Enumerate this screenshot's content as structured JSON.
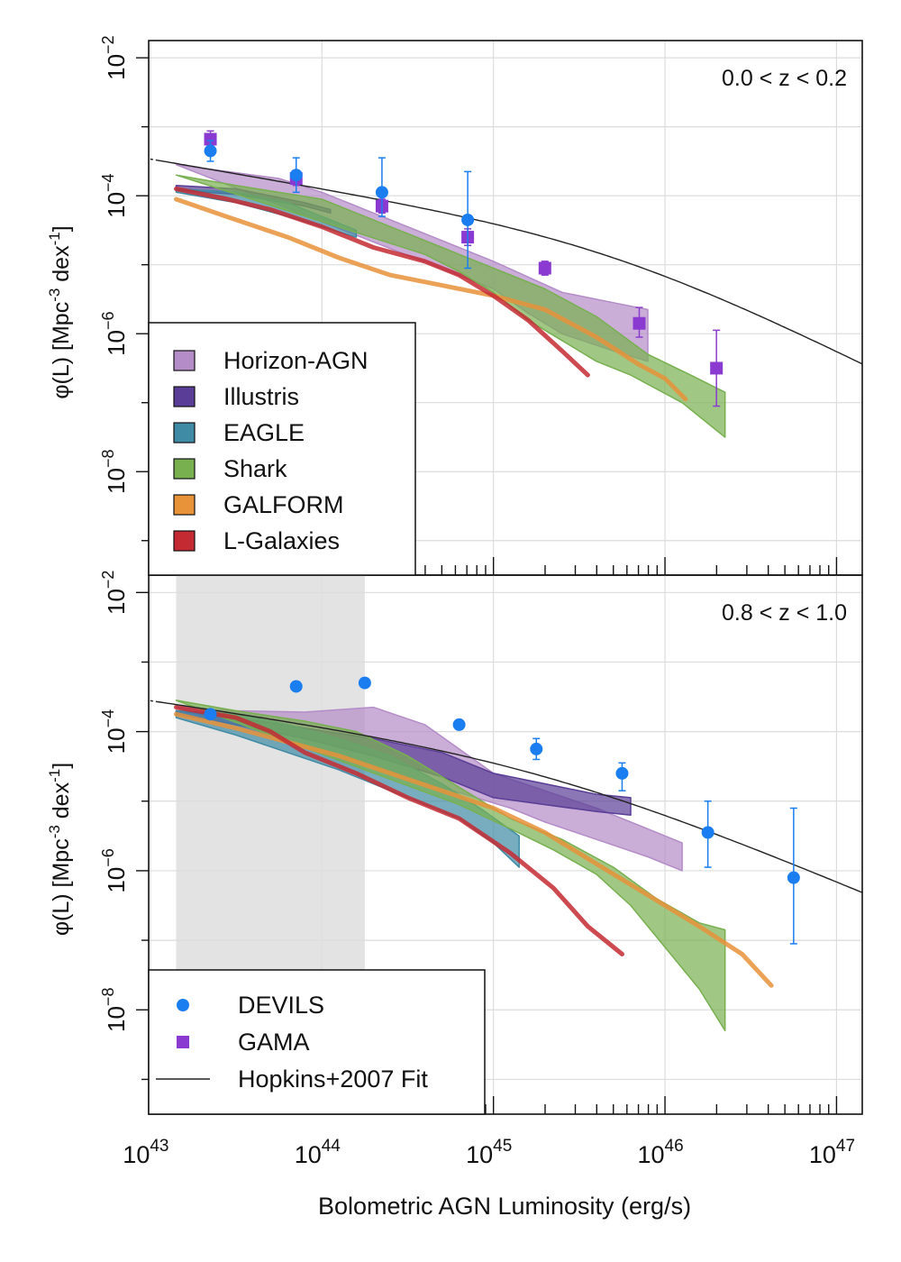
{
  "chart_data": {
    "type": "line",
    "xlabel": "Bolometric AGN Luminosity (erg/s)",
    "ylabel_main": "φ(L)  [Mpc",
    "ylabel_sup1": "-3",
    "ylabel_mid": " dex",
    "ylabel_sup2": "-1",
    "ylabel_end": "]",
    "x_scale": "log10",
    "y_scale": "log10",
    "xlim_log": [
      42.99,
      47.15
    ],
    "ylim_log": [
      -9.5,
      -1.75
    ],
    "x_tick_labels": [
      {
        "base": "10",
        "exp": "43",
        "log": 43
      },
      {
        "base": "10",
        "exp": "44",
        "log": 44
      },
      {
        "base": "10",
        "exp": "45",
        "log": 45
      },
      {
        "base": "10",
        "exp": "46",
        "log": 46
      },
      {
        "base": "10",
        "exp": "47",
        "log": 47
      }
    ],
    "y_tick_labels": [
      {
        "base": "10",
        "exp": "−2",
        "log": -2
      },
      {
        "base": "10",
        "exp": "−4",
        "log": -4
      },
      {
        "base": "10",
        "exp": "−6",
        "log": -6
      },
      {
        "base": "10",
        "exp": "−8",
        "log": -8
      }
    ],
    "colors": {
      "Horizon-AGN": "#b48cc8",
      "Illustris": "#5a3d96",
      "EAGLE": "#3f8aa4",
      "Shark": "#78b050",
      "GALFORM": "#e8923a",
      "L-Galaxies": "#c42a32",
      "DEVILS": "#1a7ef0",
      "GAMA": "#8a3ad0",
      "Hopkins": "#222222"
    },
    "legend_sims": [
      {
        "label": "Horizon-AGN",
        "color": "#b48cc8"
      },
      {
        "label": "Illustris",
        "color": "#5a3d96"
      },
      {
        "label": "EAGLE",
        "color": "#3f8aa4"
      },
      {
        "label": "Shark",
        "color": "#78b050"
      },
      {
        "label": "GALFORM",
        "color": "#e8923a"
      },
      {
        "label": "L-Galaxies",
        "color": "#c42a32"
      }
    ],
    "legend_obs": [
      {
        "label": "DEVILS",
        "marker": "circle",
        "color": "#1a7ef0"
      },
      {
        "label": "GAMA",
        "marker": "square",
        "color": "#8a3ad0"
      },
      {
        "label": "Hopkins+2007 Fit",
        "marker": "line",
        "color": "#222222"
      }
    ],
    "hopkins_fit": {
      "label": "Hopkins+2007 Fit",
      "note": "double power law, log phi vs log L",
      "top": {
        "logphi_star": -4.6,
        "logL_star": 45.7,
        "gamma1": 0.42,
        "gamma2": 1.25
      },
      "bottom": {
        "logphi_star": -4.35,
        "logL_star": 45.3,
        "gamma1": 0.35,
        "gamma2": 1.05
      }
    },
    "panels": [
      {
        "label": "0.0 < z < 0.2",
        "shaded_region_log": null,
        "bands": [
          {
            "name": "Horizon-AGN",
            "upper": [
              [
                43.15,
                -3.55
              ],
              [
                43.6,
                -3.7
              ],
              [
                43.75,
                -3.75
              ],
              [
                44.0,
                -3.95
              ],
              [
                44.3,
                -4.25
              ],
              [
                44.6,
                -4.55
              ],
              [
                45.0,
                -4.95
              ],
              [
                45.4,
                -5.4
              ],
              [
                45.7,
                -5.55
              ],
              [
                45.9,
                -5.65
              ]
            ],
            "lower": [
              [
                45.9,
                -6.4
              ],
              [
                45.7,
                -6.25
              ],
              [
                45.4,
                -6.0
              ],
              [
                45.2,
                -5.7
              ],
              [
                45.0,
                -5.35
              ]
            ]
          },
          {
            "name": "Illustris",
            "upper": [
              [
                43.15,
                -3.85
              ],
              [
                43.5,
                -3.9
              ],
              [
                43.9,
                -4.1
              ],
              [
                44.05,
                -4.2
              ]
            ],
            "lower": [
              [
                44.05,
                -4.25
              ],
              [
                43.9,
                -4.15
              ],
              [
                43.5,
                -3.98
              ],
              [
                43.15,
                -3.92
              ]
            ]
          },
          {
            "name": "EAGLE",
            "upper": [
              [
                43.15,
                -3.9
              ],
              [
                43.5,
                -3.95
              ],
              [
                43.8,
                -4.1
              ],
              [
                44.0,
                -4.3
              ],
              [
                44.2,
                -4.5
              ]
            ],
            "lower": [
              [
                44.2,
                -4.6
              ],
              [
                44.0,
                -4.45
              ],
              [
                43.8,
                -4.3
              ],
              [
                43.5,
                -4.1
              ],
              [
                43.15,
                -3.95
              ]
            ]
          },
          {
            "name": "Shark",
            "upper": [
              [
                43.15,
                -3.7
              ],
              [
                43.5,
                -3.85
              ],
              [
                44.0,
                -4.05
              ],
              [
                44.3,
                -4.35
              ],
              [
                44.7,
                -4.75
              ],
              [
                45.0,
                -5.05
              ],
              [
                45.3,
                -5.35
              ],
              [
                45.6,
                -5.75
              ],
              [
                45.9,
                -6.3
              ],
              [
                46.15,
                -6.6
              ],
              [
                46.35,
                -6.85
              ]
            ],
            "lower": [
              [
                46.35,
                -7.5
              ],
              [
                46.1,
                -7.0
              ],
              [
                45.8,
                -6.6
              ],
              [
                45.6,
                -6.4
              ],
              [
                45.4,
                -6.1
              ],
              [
                45.2,
                -5.8
              ],
              [
                45.0,
                -5.4
              ],
              [
                44.8,
                -5.1
              ],
              [
                44.6,
                -4.85
              ]
            ]
          }
        ],
        "lines": [
          {
            "name": "GALFORM",
            "points": [
              [
                43.15,
                -4.05
              ],
              [
                43.5,
                -4.35
              ],
              [
                43.8,
                -4.6
              ],
              [
                44.1,
                -4.9
              ],
              [
                44.4,
                -5.15
              ],
              [
                44.7,
                -5.3
              ],
              [
                45.0,
                -5.45
              ],
              [
                45.3,
                -5.65
              ],
              [
                45.6,
                -6.05
              ],
              [
                45.85,
                -6.45
              ],
              [
                46.0,
                -6.65
              ],
              [
                46.12,
                -6.95
              ]
            ]
          },
          {
            "name": "L-Galaxies",
            "points": [
              [
                43.15,
                -3.9
              ],
              [
                43.45,
                -4.05
              ],
              [
                43.7,
                -4.2
              ],
              [
                44.0,
                -4.45
              ],
              [
                44.3,
                -4.75
              ],
              [
                44.6,
                -4.95
              ],
              [
                44.8,
                -5.15
              ],
              [
                45.0,
                -5.45
              ],
              [
                45.2,
                -5.8
              ],
              [
                45.4,
                -6.25
              ],
              [
                45.55,
                -6.6
              ]
            ]
          }
        ],
        "devils": [
          {
            "x": 43.35,
            "y": -3.35,
            "ylo": -3.5,
            "yhi": -3.2
          },
          {
            "x": 43.85,
            "y": -3.7,
            "ylo": -3.95,
            "yhi": -3.45
          },
          {
            "x": 44.35,
            "y": -3.95,
            "ylo": -4.3,
            "yhi": -3.45
          },
          {
            "x": 44.85,
            "y": -4.35,
            "ylo": -5.05,
            "yhi": -3.65
          }
        ],
        "gama": [
          {
            "x": 43.35,
            "y": -3.18,
            "ylo": -3.3,
            "yhi": -3.06
          },
          {
            "x": 43.85,
            "y": -3.75,
            "ylo": -3.85,
            "yhi": -3.65
          },
          {
            "x": 44.35,
            "y": -4.15,
            "ylo": -4.25,
            "yhi": -4.05
          },
          {
            "x": 44.85,
            "y": -4.6,
            "ylo": -4.72,
            "yhi": -4.48
          },
          {
            "x": 45.3,
            "y": -5.05,
            "ylo": -5.15,
            "yhi": -4.95
          },
          {
            "x": 45.85,
            "y": -5.85,
            "ylo": -6.05,
            "yhi": -5.62
          },
          {
            "x": 46.3,
            "y": -6.5,
            "ylo": -7.05,
            "yhi": -5.95
          }
        ]
      },
      {
        "label": "0.8 < z < 1.0",
        "shaded_region_log": [
          43.15,
          44.25
        ],
        "bands": [
          {
            "name": "Horizon-AGN",
            "upper": [
              [
                43.15,
                -3.65
              ],
              [
                43.5,
                -3.7
              ],
              [
                43.9,
                -3.72
              ],
              [
                44.3,
                -3.65
              ],
              [
                44.6,
                -3.9
              ],
              [
                44.8,
                -4.25
              ],
              [
                45.0,
                -4.6
              ],
              [
                45.3,
                -4.85
              ],
              [
                45.6,
                -5.1
              ],
              [
                45.9,
                -5.4
              ],
              [
                46.1,
                -5.6
              ]
            ],
            "lower": [
              [
                46.1,
                -6.0
              ],
              [
                45.9,
                -5.8
              ],
              [
                45.6,
                -5.55
              ],
              [
                45.3,
                -5.3
              ],
              [
                45.1,
                -5.1
              ]
            ]
          },
          {
            "name": "Illustris",
            "upper": [
              [
                43.15,
                -3.7
              ],
              [
                43.5,
                -3.8
              ],
              [
                43.9,
                -3.95
              ],
              [
                44.3,
                -4.1
              ],
              [
                44.7,
                -4.3
              ],
              [
                45.0,
                -4.6
              ],
              [
                45.3,
                -4.75
              ],
              [
                45.6,
                -4.9
              ],
              [
                45.8,
                -4.95
              ]
            ],
            "lower": [
              [
                45.8,
                -5.2
              ],
              [
                45.6,
                -5.15
              ],
              [
                45.3,
                -5.05
              ],
              [
                45.0,
                -4.95
              ],
              [
                44.7,
                -4.65
              ],
              [
                44.3,
                -4.35
              ],
              [
                43.9,
                -4.1
              ],
              [
                43.5,
                -3.9
              ],
              [
                43.15,
                -3.75
              ]
            ]
          },
          {
            "name": "EAGLE",
            "upper": [
              [
                43.15,
                -3.7
              ],
              [
                43.5,
                -3.75
              ],
              [
                43.8,
                -3.9
              ],
              [
                44.1,
                -4.1
              ],
              [
                44.4,
                -4.35
              ],
              [
                44.7,
                -4.75
              ],
              [
                44.95,
                -5.15
              ],
              [
                45.15,
                -5.5
              ]
            ],
            "lower": [
              [
                45.15,
                -5.95
              ],
              [
                45.0,
                -5.6
              ],
              [
                44.8,
                -5.25
              ],
              [
                44.6,
                -5.05
              ],
              [
                44.4,
                -4.85
              ],
              [
                44.1,
                -4.55
              ],
              [
                43.8,
                -4.3
              ],
              [
                43.5,
                -4.05
              ],
              [
                43.15,
                -3.8
              ]
            ]
          },
          {
            "name": "Shark",
            "upper": [
              [
                43.15,
                -3.55
              ],
              [
                43.5,
                -3.7
              ],
              [
                43.9,
                -3.85
              ],
              [
                44.2,
                -4.0
              ],
              [
                44.5,
                -4.35
              ],
              [
                44.8,
                -4.8
              ],
              [
                45.1,
                -5.25
              ],
              [
                45.4,
                -5.55
              ],
              [
                45.7,
                -5.95
              ],
              [
                45.95,
                -6.4
              ],
              [
                46.2,
                -6.75
              ],
              [
                46.35,
                -6.85
              ]
            ],
            "lower": [
              [
                46.35,
                -8.3
              ],
              [
                46.2,
                -7.7
              ],
              [
                46.05,
                -7.25
              ],
              [
                45.8,
                -6.5
              ],
              [
                45.6,
                -6.05
              ],
              [
                45.35,
                -5.7
              ],
              [
                45.1,
                -5.4
              ],
              [
                44.8,
                -5.05
              ]
            ]
          }
        ],
        "lines": [
          {
            "name": "GALFORM",
            "points": [
              [
                43.15,
                -3.75
              ],
              [
                43.5,
                -3.95
              ],
              [
                43.8,
                -4.15
              ],
              [
                44.1,
                -4.35
              ],
              [
                44.4,
                -4.6
              ],
              [
                44.7,
                -4.85
              ],
              [
                45.0,
                -5.1
              ],
              [
                45.3,
                -5.45
              ],
              [
                45.6,
                -5.9
              ],
              [
                45.9,
                -6.35
              ],
              [
                46.2,
                -6.8
              ],
              [
                46.45,
                -7.2
              ],
              [
                46.62,
                -7.65
              ]
            ]
          },
          {
            "name": "L-Galaxies",
            "points": [
              [
                43.15,
                -3.65
              ],
              [
                43.5,
                -3.8
              ],
              [
                43.7,
                -4.0
              ],
              [
                43.9,
                -4.3
              ],
              [
                44.2,
                -4.6
              ],
              [
                44.5,
                -4.95
              ],
              [
                44.8,
                -5.25
              ],
              [
                45.1,
                -5.75
              ],
              [
                45.35,
                -6.25
              ],
              [
                45.55,
                -6.8
              ],
              [
                45.75,
                -7.2
              ]
            ]
          }
        ],
        "devils": [
          {
            "x": 43.35,
            "y": -3.75,
            "ylo": -3.75,
            "yhi": -3.75
          },
          {
            "x": 43.85,
            "y": -3.35,
            "ylo": -3.35,
            "yhi": -3.35
          },
          {
            "x": 44.25,
            "y": -3.3,
            "ylo": -3.3,
            "yhi": -3.3
          },
          {
            "x": 44.8,
            "y": -3.9,
            "ylo": -3.9,
            "yhi": -3.9
          },
          {
            "x": 45.25,
            "y": -4.25,
            "ylo": -4.4,
            "yhi": -4.1
          },
          {
            "x": 45.75,
            "y": -4.6,
            "ylo": -4.85,
            "yhi": -4.45
          },
          {
            "x": 46.25,
            "y": -5.45,
            "ylo": -5.95,
            "yhi": -5.0
          },
          {
            "x": 46.75,
            "y": -6.1,
            "ylo": -7.05,
            "yhi": -5.1
          }
        ],
        "gama": []
      }
    ]
  }
}
